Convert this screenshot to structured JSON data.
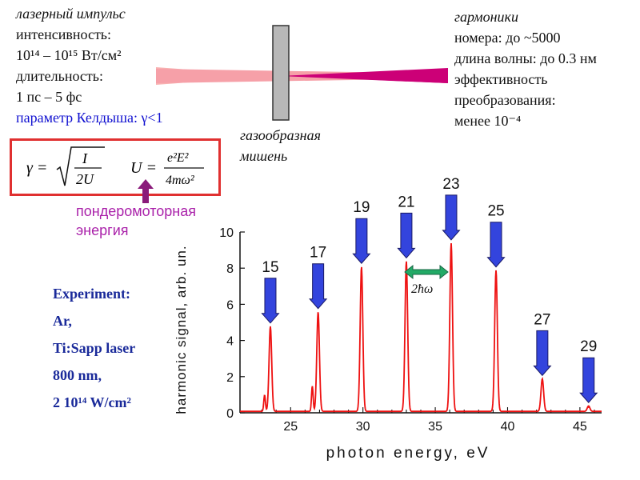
{
  "laser": {
    "title": "лазерный импульс",
    "intensity_label": "интенсивность:",
    "intensity_value": "10¹⁴ – 10¹⁵ Вт/см²",
    "duration_label": "длительность:",
    "duration_value": "1 пс – 5 фс",
    "keldysh": "параметр Келдыша: γ<1"
  },
  "target": {
    "line1": "газообразная",
    "line2": "мишень"
  },
  "harmonics": {
    "title": "гармоники",
    "numbers": "номера: до ~5000",
    "wavelength": "длина волны: до 0.3 нм",
    "efficiency1": "эффективность",
    "efficiency2": "преобразования:",
    "efficiency3": "менее 10⁻⁴"
  },
  "formula": {
    "gamma_lhs": "γ =",
    "gamma_num": "I",
    "gamma_den": "2U",
    "u_lhs": "U =",
    "u_num": "e²E²",
    "u_den": "4mω²"
  },
  "ponderomotive": {
    "line1": "пондеромоторная",
    "line2": "энергия"
  },
  "experiment": {
    "line1": "Experiment:",
    "line2": "Ar,",
    "line3": "Ti:Sapp laser",
    "line4": "800 nm,",
    "line5": "2 10¹⁴ W/cm²"
  },
  "spacing_label": "2ħω",
  "harmonic_orders": [
    "15",
    "17",
    "19",
    "21",
    "23",
    "25",
    "27",
    "29"
  ],
  "colors": {
    "peak": "#ee1111",
    "arrow": "#3344dd",
    "arrow_stroke": "#1a1a66",
    "double_arrow": "#22aa66",
    "box_border": "#e03030",
    "purple_arrow": "#8a1a7a",
    "beam": "#f8b0b0",
    "beam_harm": "#cc0077",
    "ponder_text": "#aa22aa",
    "exp_text": "#1a2a9a"
  },
  "chart_data": {
    "type": "line",
    "xlabel": "photon energy, eV",
    "ylabel": "harmonic signal, arb. un.",
    "xlim": [
      21.5,
      46.5
    ],
    "ylim": [
      0,
      10
    ],
    "x_ticks": [
      25,
      30,
      35,
      40,
      45
    ],
    "y_ticks": [
      0,
      2,
      4,
      6,
      8,
      10
    ],
    "grid": false,
    "peaks": [
      {
        "order": 15,
        "x": 23.6,
        "y": 4.7
      },
      {
        "order": 17,
        "x": 26.9,
        "y": 5.5
      },
      {
        "order": 19,
        "x": 29.9,
        "y": 8.0
      },
      {
        "order": 21,
        "x": 33.0,
        "y": 8.3
      },
      {
        "order": 23,
        "x": 36.1,
        "y": 9.3
      },
      {
        "order": 25,
        "x": 39.2,
        "y": 7.8
      },
      {
        "order": 27,
        "x": 42.4,
        "y": 1.8
      },
      {
        "order": 29,
        "x": 45.6,
        "y": 0.3
      }
    ],
    "secondary_peaks": [
      {
        "x": 23.2,
        "y": 0.9
      },
      {
        "x": 26.5,
        "y": 1.4
      }
    ]
  }
}
